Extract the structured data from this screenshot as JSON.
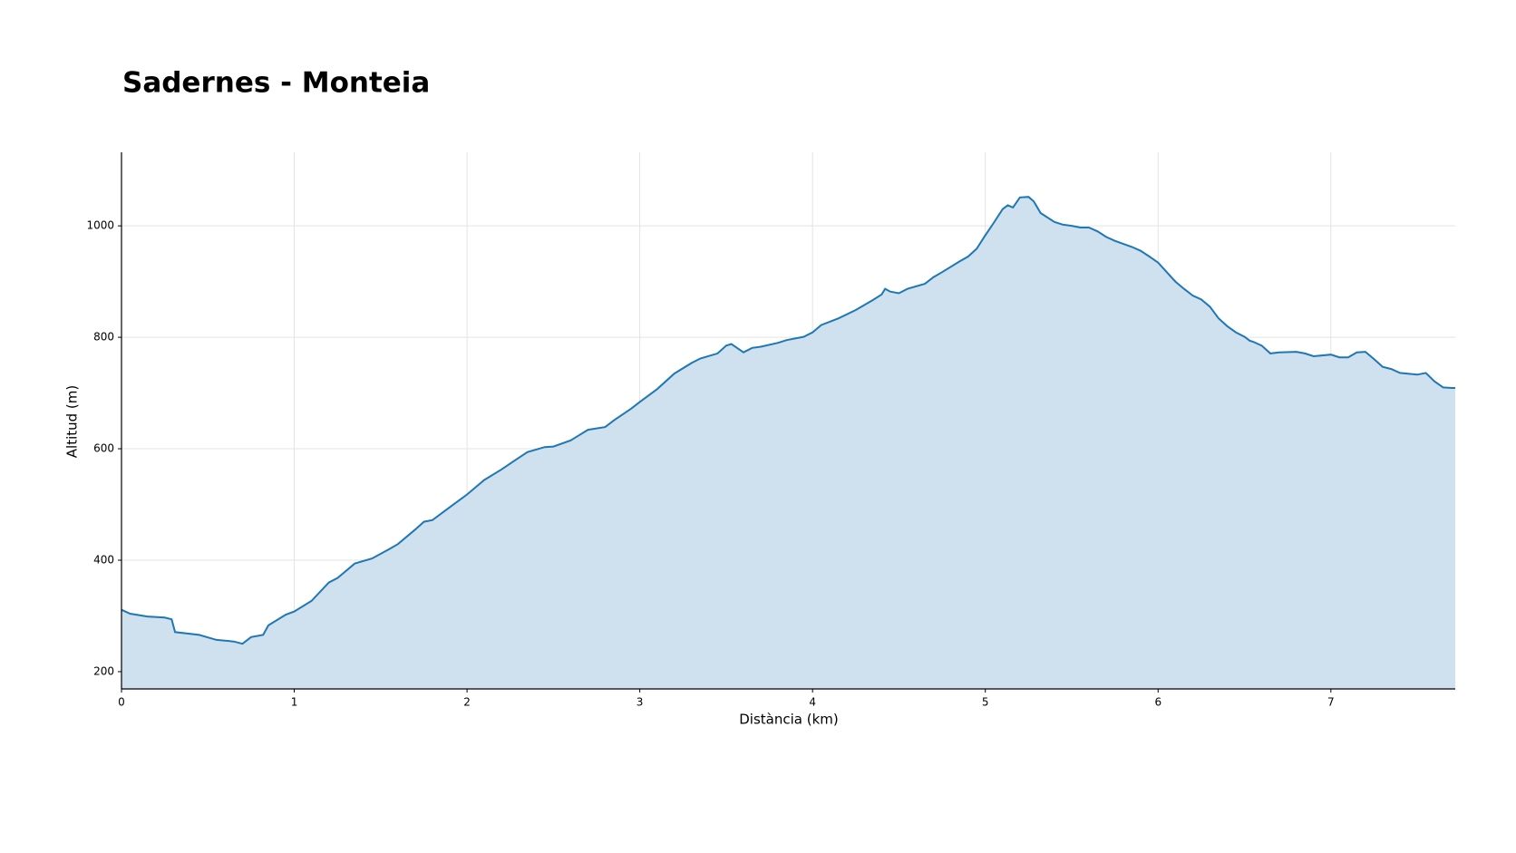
{
  "chart_data": {
    "type": "area",
    "title": "Sadernes - Monteia",
    "x_label": "Distància (km)",
    "y_label": "Altitud (m)",
    "x": [
      0,
      0.05,
      0.15,
      0.25,
      0.29,
      0.31,
      0.45,
      0.55,
      0.65,
      0.7,
      0.75,
      0.82,
      0.85,
      0.95,
      1.0,
      1.1,
      1.2,
      1.25,
      1.35,
      1.45,
      1.55,
      1.6,
      1.7,
      1.75,
      1.8,
      1.9,
      2.0,
      2.1,
      2.2,
      2.3,
      2.35,
      2.45,
      2.5,
      2.6,
      2.7,
      2.8,
      2.85,
      2.95,
      3.0,
      3.1,
      3.2,
      3.3,
      3.35,
      3.45,
      3.5,
      3.53,
      3.6,
      3.65,
      3.7,
      3.8,
      3.85,
      3.95,
      4.0,
      4.05,
      4.15,
      4.25,
      4.35,
      4.4,
      4.42,
      4.45,
      4.5,
      4.55,
      4.65,
      4.7,
      4.75,
      4.85,
      4.9,
      4.95,
      5.0,
      5.05,
      5.1,
      5.13,
      5.16,
      5.2,
      5.25,
      5.28,
      5.32,
      5.4,
      5.45,
      5.5,
      5.55,
      5.6,
      5.65,
      5.7,
      5.75,
      5.85,
      5.9,
      5.95,
      6.0,
      6.05,
      6.1,
      6.15,
      6.2,
      6.25,
      6.3,
      6.35,
      6.4,
      6.45,
      6.5,
      6.53,
      6.55,
      6.6,
      6.65,
      6.7,
      6.8,
      6.85,
      6.9,
      7.0,
      7.05,
      7.1,
      7.15,
      7.2,
      7.25,
      7.3,
      7.35,
      7.4,
      7.5,
      7.55,
      7.6,
      7.65,
      7.7,
      7.72
    ],
    "values": [
      311,
      304,
      299,
      297,
      294,
      271,
      266,
      257,
      254,
      250,
      262,
      266,
      283,
      302,
      308,
      327,
      360,
      368,
      394,
      403,
      420,
      429,
      455,
      469,
      472,
      495,
      518,
      544,
      563,
      584,
      594,
      603,
      604,
      615,
      634,
      639,
      651,
      672,
      684,
      707,
      735,
      754,
      762,
      771,
      785,
      788,
      773,
      781,
      783,
      790,
      795,
      801,
      809,
      822,
      834,
      849,
      867,
      877,
      887,
      882,
      879,
      887,
      896,
      908,
      917,
      936,
      945,
      959,
      983,
      1006,
      1030,
      1037,
      1033,
      1051,
      1052,
      1044,
      1023,
      1007,
      1002,
      1000,
      997,
      997,
      990,
      980,
      973,
      962,
      955,
      945,
      934,
      917,
      900,
      887,
      875,
      868,
      855,
      834,
      820,
      809,
      801,
      794,
      792,
      785,
      771,
      773,
      774,
      771,
      766,
      769,
      764,
      764,
      773,
      774,
      761,
      747,
      743,
      736,
      733,
      736,
      721,
      710,
      709,
      709
    ],
    "color": "#1f77b4",
    "fill_color": "#cfe0ee",
    "xlim": [
      0,
      7.72
    ],
    "ylim": [
      169,
      1132
    ],
    "xticks": [
      0,
      1,
      2,
      3,
      4,
      5,
      6,
      7
    ],
    "yticks": [
      200,
      400,
      600,
      800,
      1000
    ],
    "grid": true
  }
}
